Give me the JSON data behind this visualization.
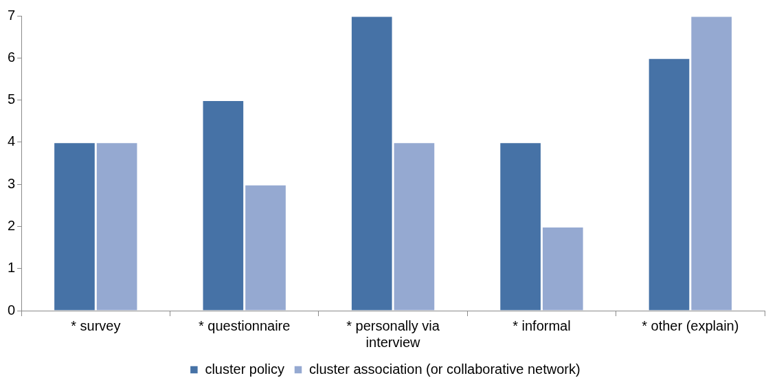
{
  "chart_data": {
    "type": "bar",
    "categories": [
      "* survey",
      "* questionnaire",
      "* personally via interview",
      "* informal",
      "* other (explain)"
    ],
    "series": [
      {
        "name": "cluster policy",
        "color": "#4672a6",
        "values": [
          4,
          5,
          7,
          4,
          6
        ]
      },
      {
        "name": "cluster association (or collaborative network)",
        "color": "#95a9d1",
        "values": [
          4,
          3,
          4,
          2,
          7
        ]
      }
    ],
    "ylim": [
      0,
      7
    ],
    "yticks": [
      0,
      1,
      2,
      3,
      4,
      5,
      6,
      7
    ],
    "grid": false,
    "legend": "bottom"
  }
}
